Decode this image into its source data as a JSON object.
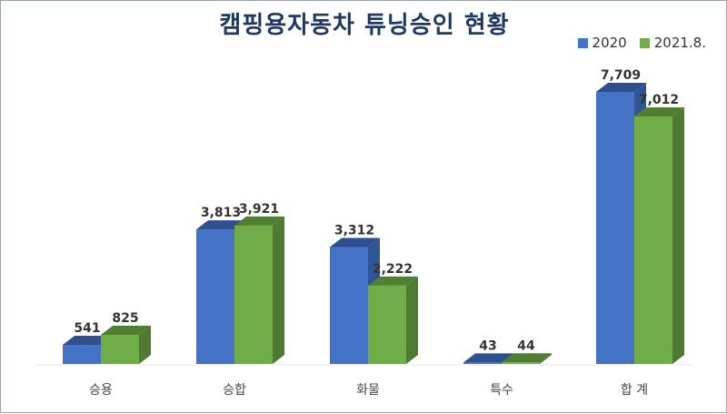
{
  "chart_data": {
    "type": "bar",
    "title": "캠핑용자동차 튜닝승인 현황",
    "categories": [
      "승용",
      "승합",
      "화물",
      "특수",
      "합 계"
    ],
    "series": [
      {
        "name": "2020",
        "color": "#4472c4",
        "side_color": "#2f5597",
        "top_color": "#2f4f8f",
        "values": [
          541,
          3813,
          3312,
          43,
          7709
        ],
        "labels": [
          "541",
          "3,813",
          "3,312",
          "43",
          "7,709"
        ]
      },
      {
        "name": "2021.8.",
        "color": "#70ad47",
        "side_color": "#4e7a31",
        "top_color": "#507e32",
        "values": [
          825,
          3921,
          2222,
          44,
          7012
        ],
        "labels": [
          "825",
          "3,921",
          "2,222",
          "44",
          "7,012"
        ]
      }
    ],
    "ylim": [
      0,
      7709
    ],
    "grid": false,
    "legend_position": "top-right"
  }
}
